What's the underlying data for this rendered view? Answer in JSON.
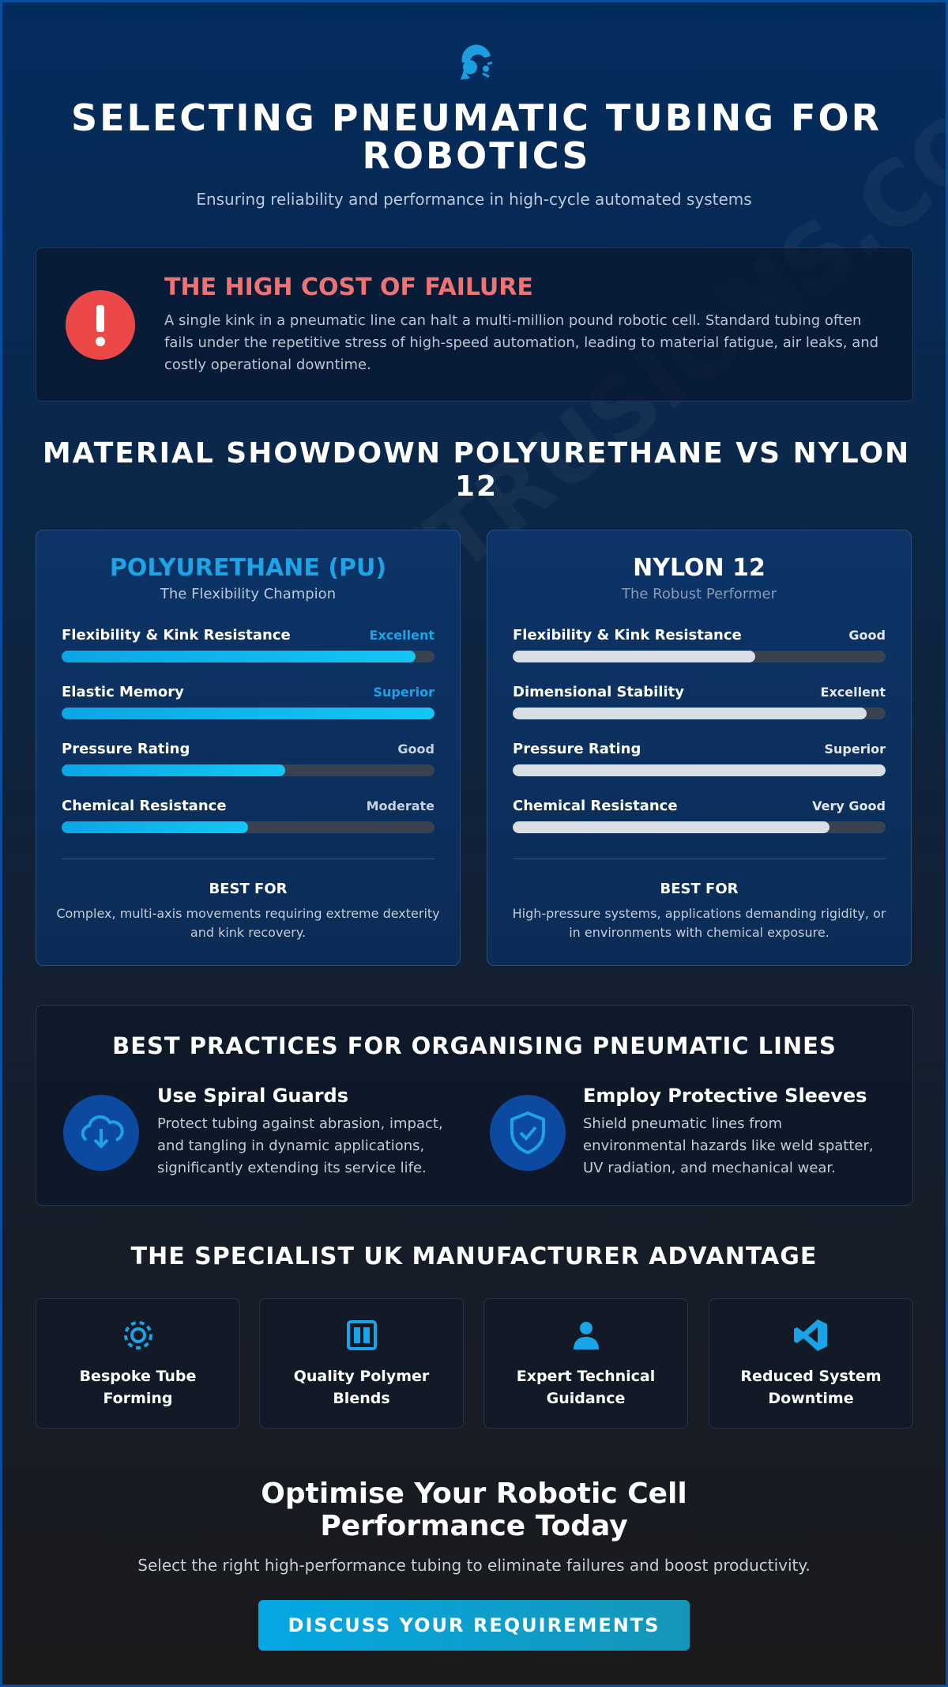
{
  "header": {
    "title": "SELECTING PNEUMATIC TUBING FOR ROBOTICS",
    "subtitle": "Ensuring reliability and performance in high-cycle automated systems"
  },
  "alert": {
    "title": "THE HIGH COST OF FAILURE",
    "text": "A single kink in a pneumatic line can halt a multi-million pound robotic cell. Standard tubing often fails under the repetitive stress of high-speed automation, leading to material fatigue, air leaks, and costly operational downtime."
  },
  "showdown": {
    "title": "MATERIAL SHOWDOWN POLYURETHANE VS NYLON 12",
    "materials": [
      {
        "name": "POLYURETHANE (PU)",
        "tagline": "The Flexibility Champion",
        "ratings": [
          {
            "label": "Flexibility & Kink Resistance",
            "rating": "Excellent",
            "level": 95
          },
          {
            "label": "Elastic Memory",
            "rating": "Superior",
            "level": 100
          },
          {
            "label": "Pressure Rating",
            "rating": "Good",
            "level": 60
          },
          {
            "label": "Chemical Resistance",
            "rating": "Moderate",
            "level": 50
          }
        ],
        "best_for_label": "BEST FOR",
        "best_for": "Complex, multi-axis movements requiring extreme dexterity and kink recovery."
      },
      {
        "name": "NYLON 12",
        "tagline": "The Robust Performer",
        "ratings": [
          {
            "label": "Flexibility & Kink Resistance",
            "rating": "Good",
            "level": 65
          },
          {
            "label": "Dimensional Stability",
            "rating": "Excellent",
            "level": 95
          },
          {
            "label": "Pressure Rating",
            "rating": "Superior",
            "level": 100
          },
          {
            "label": "Chemical Resistance",
            "rating": "Very Good",
            "level": 85
          }
        ],
        "best_for_label": "BEST FOR",
        "best_for": "High-pressure systems, applications demanding rigidity, or in environments with chemical exposure."
      }
    ]
  },
  "practices": {
    "title": "BEST PRACTICES FOR ORGANISING PNEUMATIC LINES",
    "items": [
      {
        "title": "Use Spiral Guards",
        "text": "Protect tubing against abrasion, impact, and tangling in dynamic applications, significantly extending its service life."
      },
      {
        "title": "Employ Protective Sleeves",
        "text": "Shield pneumatic lines from environmental hazards like weld spatter, UV radiation, and mechanical wear."
      }
    ]
  },
  "advantage": {
    "title": "THE SPECIALIST UK MANUFACTURER ADVANTAGE",
    "items": [
      "Bespoke Tube Forming",
      "Quality Polymer Blends",
      "Expert Technical Guidance",
      "Reduced System Downtime"
    ]
  },
  "cta": {
    "title": "Optimise Your Robotic Cell Performance Today",
    "text": "Select the right high-performance tubing to eliminate failures and boost productivity.",
    "button": "DISCUSS YOUR REQUIREMENTS"
  },
  "watermark": "ABBEYEXTRUSIONS.COM"
}
